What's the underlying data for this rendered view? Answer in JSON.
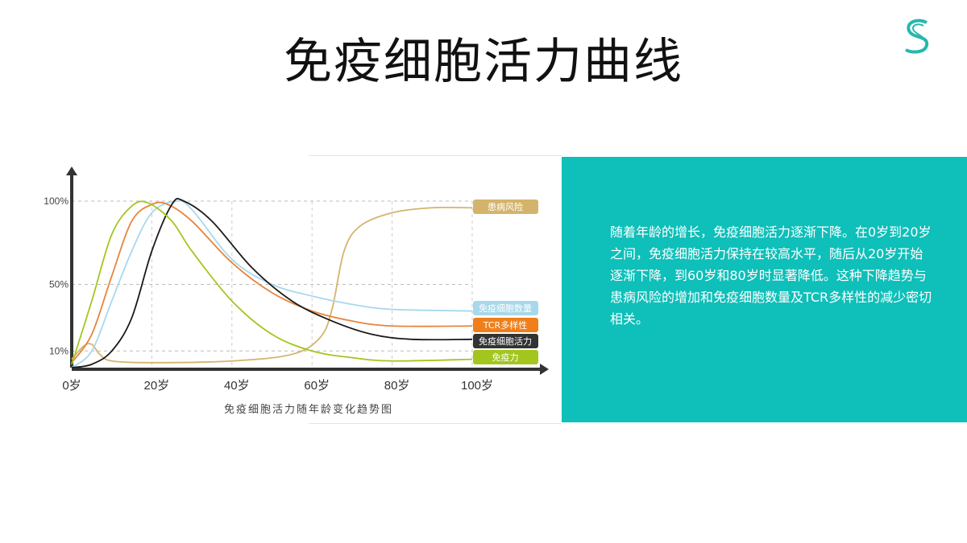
{
  "title": "免疫细胞活力曲线",
  "logo": {
    "letter": "S",
    "color": "#27b7ad"
  },
  "panel": {
    "color": "#0fbfb9",
    "text": "随着年龄的增长，免疫细胞活力逐渐下降。在0岁到20岁之间，免疫细胞活力保持在较高水平，随后从20岁开始逐渐下降，到60岁和80岁时显著降低。这种下降趋势与患病风险的增加和免疫细胞数量及TCR多样性的减少密切相关。"
  },
  "chart_data": {
    "type": "line",
    "title": "",
    "xlabel": "免疫细胞活力随年龄变化趋势图",
    "ylabel": "",
    "xlim": [
      0,
      118
    ],
    "ylim": [
      0,
      100
    ],
    "x_ticks": [
      {
        "value": 0,
        "label": "0岁"
      },
      {
        "value": 20,
        "label": "20岁"
      },
      {
        "value": 40,
        "label": "40岁"
      },
      {
        "value": 60,
        "label": "60岁"
      },
      {
        "value": 80,
        "label": "80岁"
      },
      {
        "value": 100,
        "label": "100岁"
      }
    ],
    "y_ticks": [
      {
        "value": 100,
        "label": "100%"
      },
      {
        "value": 50,
        "label": "50%"
      },
      {
        "value": 10,
        "label": "10%"
      }
    ],
    "grid": true,
    "legend": "right",
    "series": [
      {
        "name": "患病风险",
        "color": "#d4b46c",
        "points": [
          [
            0,
            5
          ],
          [
            3,
            13
          ],
          [
            5,
            14
          ],
          [
            7,
            8
          ],
          [
            10,
            4
          ],
          [
            20,
            3
          ],
          [
            40,
            4
          ],
          [
            55,
            8
          ],
          [
            62,
            18
          ],
          [
            65,
            35
          ],
          [
            68,
            70
          ],
          [
            72,
            85
          ],
          [
            80,
            93
          ],
          [
            90,
            96
          ],
          [
            100,
            96
          ]
        ]
      },
      {
        "name": "免疫细胞数量",
        "color": "#a8d8ec",
        "points": [
          [
            0,
            0
          ],
          [
            5,
            10
          ],
          [
            10,
            40
          ],
          [
            15,
            70
          ],
          [
            20,
            93
          ],
          [
            26,
            100
          ],
          [
            30,
            95
          ],
          [
            40,
            65
          ],
          [
            50,
            50
          ],
          [
            60,
            43
          ],
          [
            70,
            38
          ],
          [
            80,
            35
          ],
          [
            100,
            34
          ]
        ]
      },
      {
        "name": "TCR多样性",
        "color": "#e8843c",
        "points": [
          [
            0,
            3
          ],
          [
            5,
            20
          ],
          [
            10,
            55
          ],
          [
            15,
            88
          ],
          [
            20,
            98
          ],
          [
            24,
            98
          ],
          [
            30,
            88
          ],
          [
            40,
            63
          ],
          [
            50,
            45
          ],
          [
            60,
            34
          ],
          [
            70,
            28
          ],
          [
            80,
            25
          ],
          [
            100,
            25
          ]
        ]
      },
      {
        "name": "免疫细胞活力",
        "color": "#1a1a1a",
        "points": [
          [
            0,
            0
          ],
          [
            5,
            2
          ],
          [
            10,
            10
          ],
          [
            15,
            30
          ],
          [
            20,
            70
          ],
          [
            25,
            98
          ],
          [
            28,
            100
          ],
          [
            35,
            88
          ],
          [
            45,
            60
          ],
          [
            55,
            40
          ],
          [
            65,
            28
          ],
          [
            75,
            20
          ],
          [
            85,
            17
          ],
          [
            100,
            17
          ]
        ]
      },
      {
        "name": "免疫力",
        "color": "#a3c61f",
        "points": [
          [
            0,
            2
          ],
          [
            5,
            40
          ],
          [
            10,
            80
          ],
          [
            15,
            97
          ],
          [
            19,
            99
          ],
          [
            25,
            88
          ],
          [
            30,
            70
          ],
          [
            40,
            40
          ],
          [
            50,
            20
          ],
          [
            60,
            10
          ],
          [
            70,
            6
          ],
          [
            80,
            4
          ],
          [
            100,
            5
          ]
        ]
      }
    ],
    "legend_colors": {
      "患病风险": "#d4b46c",
      "免疫细胞数量": "#a8d8ec",
      "TCR多样性": "#f07f1a",
      "免疫细胞活力": "#333333",
      "免疫力": "#a3c61f"
    }
  }
}
